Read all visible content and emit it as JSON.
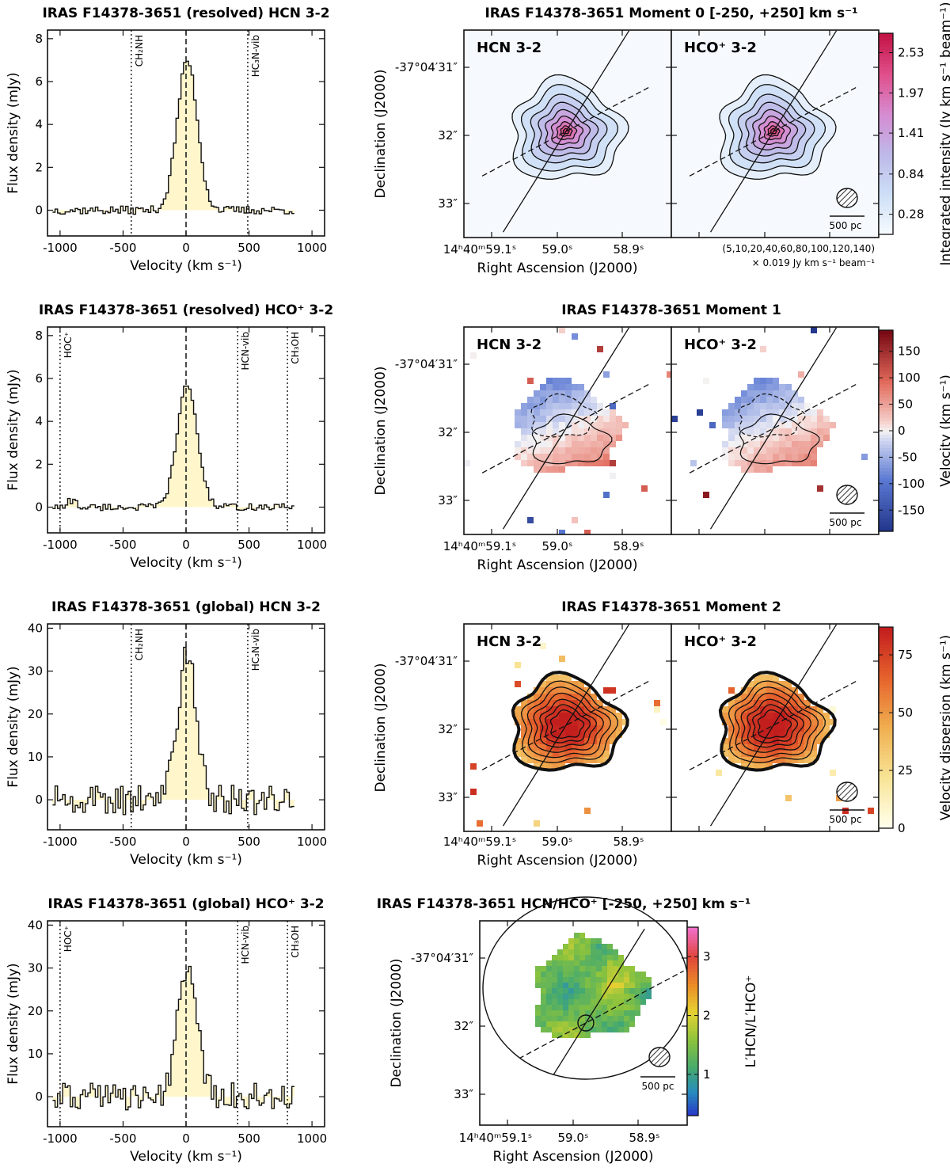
{
  "chart_data": [
    {
      "id": "spec_hcn_res",
      "type": "line",
      "title": "IRAS F14378-3651  (resolved)  HCN 3-2",
      "xlabel": "Velocity (km s⁻¹)",
      "ylabel": "Flux density (mJy)",
      "xlim": [
        -1100,
        1100
      ],
      "ylim": [
        -1.2,
        8.4
      ],
      "xticks": [
        -1000,
        -500,
        0,
        500,
        1000
      ],
      "yticks": [
        0,
        2,
        4,
        6,
        8
      ],
      "line_markers": [
        {
          "v": -435,
          "label": "CH₂NH"
        },
        {
          "v": 490,
          "label": "HC₃N-vib"
        }
      ],
      "series": [
        {
          "name": "HCN 3-2",
          "peak": 7.0,
          "sigma": 80,
          "noise": 0.12
        }
      ]
    },
    {
      "id": "spec_hco_res",
      "type": "line",
      "title": "IRAS F14378-3651  (resolved)  HCO⁺ 3-2",
      "xlabel": "Velocity (km s⁻¹)",
      "ylabel": "Flux density (mJy)",
      "xlim": [
        -1100,
        1100
      ],
      "ylim": [
        -1.2,
        8.4
      ],
      "xticks": [
        -1000,
        -500,
        0,
        500,
        1000
      ],
      "yticks": [
        0,
        2,
        4,
        6,
        8
      ],
      "line_markers": [
        {
          "v": -1000,
          "label": "HOC⁺"
        },
        {
          "v": 410,
          "label": "HCN-vib"
        },
        {
          "v": 805,
          "label": "CH₃OH"
        }
      ],
      "series": [
        {
          "name": "HCO⁺ 3-2",
          "peak": 5.7,
          "sigma": 80,
          "noise": 0.1
        }
      ]
    },
    {
      "id": "spec_hcn_glob",
      "type": "line",
      "title": "IRAS F14378-3651  (global)  HCN 3-2",
      "xlabel": "Velocity (km s⁻¹)",
      "ylabel": "Flux density (mJy)",
      "xlim": [
        -1100,
        1100
      ],
      "ylim": [
        -7,
        41
      ],
      "xticks": [
        -1000,
        -500,
        0,
        500,
        1000
      ],
      "yticks": [
        0,
        10,
        20,
        30,
        40
      ],
      "line_markers": [
        {
          "v": -435,
          "label": "CH₂NH"
        },
        {
          "v": 490,
          "label": "HC₃N-vib"
        }
      ],
      "series": [
        {
          "name": "HCN 3-2",
          "peak": 33.5,
          "sigma": 75,
          "noise": 2.2
        }
      ]
    },
    {
      "id": "spec_hco_glob",
      "type": "line",
      "title": "IRAS F14378-3651  (global)  HCO⁺ 3-2",
      "xlabel": "Velocity (km s⁻¹)",
      "ylabel": "Flux density (mJy)",
      "xlim": [
        -1100,
        1100
      ],
      "ylim": [
        -7,
        41
      ],
      "xticks": [
        -1000,
        -500,
        0,
        500,
        1000
      ],
      "yticks": [
        0,
        10,
        20,
        30,
        40
      ],
      "line_markers": [
        {
          "v": -1000,
          "label": "HOC⁺"
        },
        {
          "v": 410,
          "label": "HCN-vib"
        },
        {
          "v": 805,
          "label": "CH₃OH"
        }
      ],
      "series": [
        {
          "name": "HCO⁺ 3-2",
          "peak": 31,
          "sigma": 75,
          "noise": 2.0
        }
      ]
    },
    {
      "id": "mom0",
      "type": "heatmap",
      "title": "IRAS F14378-3651  Moment 0  [-250, +250] km s⁻¹",
      "panels": [
        "HCN 3-2",
        "HCO⁺ 3-2"
      ],
      "xlabel": "Right Ascension (J2000)",
      "ylabel": "Declination (J2000)",
      "xticklabels": [
        "14ʰ40ᵐ59.1ˢ",
        "59.0ˢ",
        "58.9ˢ"
      ],
      "yticklabels": [
        "-37°04′31″",
        "32″",
        "33″"
      ],
      "colorbar_label": "Integrated intensity (Jy km s⁻¹ beam⁻¹)",
      "colorbar_ticks": [
        0.28,
        0.84,
        1.41,
        1.97,
        2.53
      ],
      "colorbar_range": [
        0,
        2.8
      ],
      "contour_note_1": "(5,10,20,40,60,80,100,120,140)",
      "contour_note_2": "× 0.019 Jy km s⁻¹ beam⁻¹",
      "scalebar": "500 pc"
    },
    {
      "id": "mom1",
      "type": "heatmap",
      "title": "IRAS F14378-3651  Moment 1",
      "panels": [
        "HCN 3-2",
        "HCO⁺ 3-2"
      ],
      "xlabel": "Right Ascension (J2000)",
      "ylabel": "Declination (J2000)",
      "xticklabels": [
        "14ʰ40ᵐ59.1ˢ",
        "59.0ˢ",
        "58.9ˢ"
      ],
      "yticklabels": [
        "-37°04′31″",
        "32″",
        "33″"
      ],
      "colorbar_label": "Velocity (km s⁻¹)",
      "colorbar_ticks": [
        -150,
        -100,
        -50,
        0,
        50,
        100,
        150
      ],
      "colorbar_range": [
        -190,
        190
      ],
      "scalebar": "500 pc"
    },
    {
      "id": "mom2",
      "type": "heatmap",
      "title": "IRAS F14378-3651  Moment 2",
      "panels": [
        "HCN 3-2",
        "HCO⁺ 3-2"
      ],
      "xlabel": "Right Ascension (J2000)",
      "ylabel": "Declination (J2000)",
      "xticklabels": [
        "14ʰ40ᵐ59.1ˢ",
        "59.0ˢ",
        "58.9ˢ"
      ],
      "yticklabels": [
        "-37°04′31″",
        "32″",
        "33″"
      ],
      "colorbar_label": "Velocity dispersion (km s⁻¹)",
      "colorbar_ticks": [
        0,
        25,
        50,
        75
      ],
      "colorbar_range": [
        0,
        87
      ],
      "scalebar": "500 pc"
    },
    {
      "id": "ratio",
      "type": "heatmap",
      "title": "IRAS F14378-3651  HCN/HCO⁺  [-250, +250] km s⁻¹",
      "xlabel": "Right Ascension (J2000)",
      "ylabel": "Declination (J2000)",
      "xticklabels": [
        "14ʰ40ᵐ59.1ˢ",
        "59.0ˢ",
        "58.9ˢ"
      ],
      "yticklabels": [
        "-37°04′31″",
        "32″",
        "33″"
      ],
      "colorbar_label": "L′HCN/L′HCO⁺",
      "colorbar_ticks": [
        1.0,
        2.0,
        3.0
      ],
      "colorbar_range": [
        0.3,
        3.5
      ],
      "scalebar": "500 pc"
    }
  ]
}
